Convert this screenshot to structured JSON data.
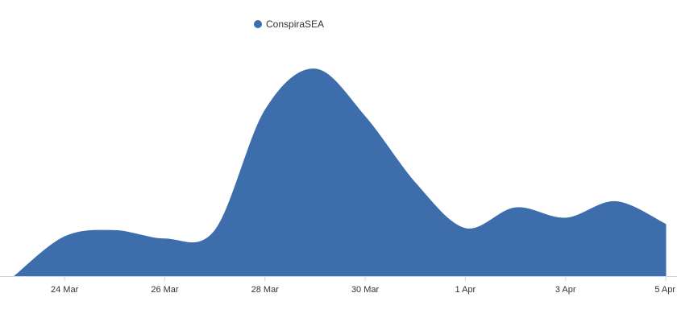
{
  "chart_data": {
    "type": "area",
    "title": "",
    "xlabel": "",
    "ylabel": "",
    "x_tick_labels": [
      "24 Mar",
      "26 Mar",
      "28 Mar",
      "30 Mar",
      "1 Apr",
      "3 Apr",
      "5 Apr"
    ],
    "series": [
      {
        "name": "ConspiraSEA",
        "color": "#3d6eab",
        "points": [
          {
            "date": "2022-03-23",
            "value": 0
          },
          {
            "date": "2022-03-24",
            "value": 19
          },
          {
            "date": "2022-03-25",
            "value": 22
          },
          {
            "date": "2022-03-26",
            "value": 18
          },
          {
            "date": "2022-03-27",
            "value": 22
          },
          {
            "date": "2022-03-28",
            "value": 80
          },
          {
            "date": "2022-03-29",
            "value": 100
          },
          {
            "date": "2022-03-30",
            "value": 77
          },
          {
            "date": "2022-03-31",
            "value": 45
          },
          {
            "date": "2022-04-01",
            "value": 23
          },
          {
            "date": "2022-04-02",
            "value": 33
          },
          {
            "date": "2022-04-03",
            "value": 28
          },
          {
            "date": "2022-04-04",
            "value": 36
          },
          {
            "date": "2022-04-05",
            "value": 25
          }
        ]
      }
    ],
    "x_range": [
      "2022-03-23",
      "2022-04-05"
    ],
    "y_range": [
      0,
      110
    ],
    "grid": false,
    "legend_position": "top-center",
    "curve": "smooth"
  }
}
